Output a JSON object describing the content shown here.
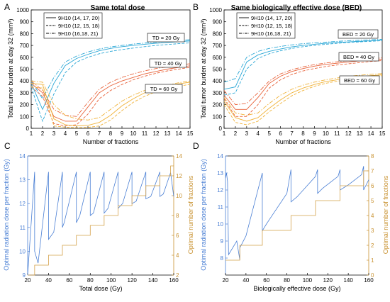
{
  "chart_data": [
    {
      "id": "A",
      "type": "line",
      "panel_label": "A",
      "title": "Same total dose",
      "xlabel": "Number of fractions",
      "ylabel": "Total tumor burden at day 32 (mm³)",
      "xlim": [
        1,
        15
      ],
      "ylim": [
        0,
        1000
      ],
      "xticks": [
        "1",
        "2",
        "3",
        "4",
        "5",
        "6",
        "7",
        "8",
        "9",
        "10",
        "11",
        "12",
        "13",
        "14",
        "15"
      ],
      "yticks": [
        "0",
        "100",
        "200",
        "300",
        "400",
        "500",
        "600",
        "700",
        "800",
        "900",
        "1000"
      ],
      "legend": {
        "position": "top-left",
        "entries": [
          {
            "label": "9H10 (14, 17, 20)",
            "style": "solid"
          },
          {
            "label": "9H10 (12, 15, 18)",
            "style": "dashed"
          },
          {
            "label": "9H10 (16,18, 21)",
            "style": "dashdot"
          }
        ]
      },
      "annotations": [
        {
          "text": "TD = 20 Gy",
          "group": 0
        },
        {
          "text": "TD = 40 Gy",
          "group": 1
        },
        {
          "text": "TD = 60 Gy",
          "group": 2
        }
      ],
      "colors": [
        "#2aa7d6",
        "#e8643c",
        "#f0b238"
      ],
      "x": [
        1,
        2,
        3,
        4,
        5,
        6,
        7,
        8,
        9,
        10,
        11,
        12,
        13,
        14,
        15
      ],
      "series": [
        {
          "group": 0,
          "style": "solid",
          "values": [
            380,
            160,
            380,
            530,
            590,
            625,
            655,
            675,
            690,
            700,
            710,
            718,
            725,
            732,
            738
          ]
        },
        {
          "group": 0,
          "style": "dashed",
          "values": [
            350,
            60,
            290,
            470,
            560,
            600,
            630,
            650,
            665,
            678,
            690,
            700,
            708,
            715,
            722
          ]
        },
        {
          "group": 0,
          "style": "dashdot",
          "values": [
            400,
            250,
            430,
            560,
            610,
            645,
            670,
            688,
            700,
            712,
            720,
            728,
            735,
            742,
            748
          ]
        },
        {
          "group": 1,
          "style": "solid",
          "values": [
            380,
            300,
            100,
            60,
            60,
            180,
            300,
            360,
            400,
            430,
            460,
            480,
            500,
            515,
            528
          ]
        },
        {
          "group": 1,
          "style": "dashed",
          "values": [
            350,
            270,
            40,
            20,
            30,
            120,
            250,
            320,
            370,
            410,
            440,
            465,
            485,
            500,
            515
          ]
        },
        {
          "group": 1,
          "style": "dashdot",
          "values": [
            400,
            320,
            160,
            110,
            100,
            220,
            330,
            390,
            430,
            460,
            485,
            505,
            520,
            535,
            545
          ]
        },
        {
          "group": 2,
          "style": "solid",
          "values": [
            380,
            370,
            80,
            30,
            20,
            25,
            50,
            110,
            190,
            250,
            300,
            330,
            355,
            375,
            390
          ]
        },
        {
          "group": 2,
          "style": "dashed",
          "values": [
            350,
            340,
            20,
            10,
            5,
            8,
            20,
            70,
            150,
            220,
            270,
            310,
            335,
            355,
            372
          ]
        },
        {
          "group": 2,
          "style": "dashdot",
          "values": [
            400,
            390,
            200,
            110,
            80,
            70,
            90,
            160,
            230,
            280,
            320,
            345,
            365,
            385,
            400
          ]
        }
      ]
    },
    {
      "id": "B",
      "type": "line",
      "panel_label": "B",
      "title": "Same biologically effective dose (BED)",
      "xlabel": "Number of fractions",
      "ylabel": "Total tumor burden at day 32 (mm³)",
      "xlim": [
        1,
        15
      ],
      "ylim": [
        0,
        1000
      ],
      "xticks": [
        "1",
        "2",
        "3",
        "4",
        "5",
        "6",
        "7",
        "8",
        "9",
        "10",
        "11",
        "12",
        "13",
        "14",
        "15"
      ],
      "yticks": [
        "0",
        "100",
        "200",
        "300",
        "400",
        "500",
        "600",
        "700",
        "800",
        "900",
        "1000"
      ],
      "legend": {
        "position": "top-left",
        "entries": [
          {
            "label": "9H10 (14, 17, 20)",
            "style": "solid"
          },
          {
            "label": "9H10 (12, 15, 18)",
            "style": "dashed"
          },
          {
            "label": "9H10 (16,18, 21)",
            "style": "dashdot"
          }
        ]
      },
      "annotations": [
        {
          "text": "BED = 20 Gy",
          "group": 0
        },
        {
          "text": "BED = 40 Gy",
          "group": 1
        },
        {
          "text": "BED = 60 Gy",
          "group": 2
        }
      ],
      "colors": [
        "#2aa7d6",
        "#e8643c",
        "#f0b238"
      ],
      "x": [
        1,
        2,
        3,
        4,
        5,
        6,
        7,
        8,
        9,
        10,
        11,
        12,
        13,
        14,
        15
      ],
      "series": [
        {
          "group": 0,
          "style": "solid",
          "values": [
            330,
            350,
            560,
            620,
            650,
            670,
            688,
            700,
            710,
            718,
            725,
            730,
            735,
            740,
            745
          ]
        },
        {
          "group": 0,
          "style": "dashed",
          "values": [
            280,
            300,
            500,
            590,
            630,
            655,
            675,
            690,
            700,
            710,
            718,
            725,
            730,
            735,
            740
          ]
        },
        {
          "group": 0,
          "style": "dashdot",
          "values": [
            390,
            420,
            600,
            650,
            675,
            692,
            705,
            715,
            722,
            728,
            734,
            740,
            744,
            748,
            752
          ]
        },
        {
          "group": 1,
          "style": "solid",
          "values": [
            280,
            160,
            160,
            260,
            380,
            440,
            480,
            505,
            525,
            540,
            550,
            560,
            570,
            578,
            585
          ]
        },
        {
          "group": 1,
          "style": "dashed",
          "values": [
            250,
            100,
            100,
            200,
            340,
            410,
            455,
            485,
            505,
            522,
            535,
            545,
            555,
            565,
            572
          ]
        },
        {
          "group": 1,
          "style": "dashdot",
          "values": [
            320,
            200,
            210,
            300,
            400,
            460,
            495,
            520,
            538,
            552,
            562,
            572,
            580,
            588,
            595
          ]
        },
        {
          "group": 2,
          "style": "solid",
          "values": [
            230,
            90,
            60,
            90,
            170,
            240,
            300,
            340,
            370,
            395,
            410,
            425,
            435,
            445,
            452
          ]
        },
        {
          "group": 2,
          "style": "dashed",
          "values": [
            200,
            50,
            30,
            60,
            140,
            210,
            275,
            320,
            355,
            380,
            398,
            412,
            425,
            435,
            445
          ]
        },
        {
          "group": 2,
          "style": "dashdot",
          "values": [
            260,
            130,
            110,
            130,
            210,
            280,
            330,
            365,
            390,
            410,
            425,
            438,
            448,
            456,
            462
          ]
        }
      ]
    },
    {
      "id": "C",
      "type": "line",
      "panel_label": "C",
      "xlabel": "Total dose (Gy)",
      "ylabel_left": "Optimal radiation dose per fraction (Gy)",
      "ylabel_right": "Optimal number of fractions",
      "xlim": [
        20,
        160
      ],
      "ylim_left": [
        9,
        14
      ],
      "ylim_right": [
        2,
        14
      ],
      "xticks": [
        "20",
        "40",
        "60",
        "80",
        "100",
        "120",
        "140",
        "160"
      ],
      "yticks_left": [
        "9",
        "10",
        "11",
        "12",
        "13",
        "14"
      ],
      "yticks_right": [
        "2",
        "4",
        "6",
        "8",
        "10",
        "12",
        "14"
      ],
      "series": [
        {
          "name": "",
          "axis": "left",
          "color": "#4a7fd4",
          "x": [
            20,
            26.7,
            26.7,
            30,
            40,
            40,
            45,
            53.3,
            53.3,
            55,
            66.7,
            66.7,
            70,
            80,
            80,
            83,
            93.3,
            93.3,
            97,
            106.7,
            106.7,
            111,
            120,
            120,
            124,
            133.3,
            133.3,
            138,
            146.7,
            146.7,
            150,
            157,
            160
          ],
          "values": [
            9.0,
            13.33,
            10.0,
            9.5,
            13.33,
            10.5,
            10.8,
            13.33,
            11.0,
            11.2,
            13.33,
            11.2,
            11.5,
            13.33,
            11.5,
            11.6,
            13.33,
            11.6,
            11.8,
            13.33,
            11.8,
            12.0,
            13.33,
            12.0,
            12.1,
            13.33,
            12.2,
            12.3,
            13.33,
            12.3,
            12.4,
            13.3,
            12.3
          ]
        },
        {
          "name": "",
          "axis": "right",
          "color": "#d4a14a",
          "x": [
            20,
            26.7,
            26.7,
            40,
            40,
            53.3,
            53.3,
            66.7,
            66.7,
            80,
            80,
            93.3,
            93.3,
            106.7,
            106.7,
            120,
            120,
            133.3,
            133.3,
            146.7,
            146.7,
            157,
            157,
            160
          ],
          "values": [
            2,
            2,
            3,
            3,
            4,
            4,
            5,
            5,
            6,
            6,
            7,
            7,
            8,
            8,
            9,
            9,
            10,
            10,
            11,
            11,
            12,
            12,
            13,
            13
          ]
        }
      ]
    },
    {
      "id": "D",
      "type": "line",
      "panel_label": "D",
      "xlabel": "Biologically effective dose (Gy)",
      "ylabel_left": "Optimal radiation dose per fraction (Gy)",
      "ylabel_right": "Optimal number of fractions",
      "xlim": [
        20,
        160
      ],
      "ylim_left": [
        7,
        14
      ],
      "ylim_right": [
        0,
        8
      ],
      "xticks": [
        "20",
        "40",
        "60",
        "80",
        "100",
        "120",
        "140",
        "160"
      ],
      "yticks_left": [
        "8",
        "9",
        "10",
        "11",
        "12",
        "13",
        "14"
      ],
      "yticks_right": [
        "0",
        "1",
        "2",
        "3",
        "4",
        "5",
        "6",
        "7",
        "8"
      ],
      "series": [
        {
          "name": "",
          "axis": "left",
          "color": "#4a7fd4",
          "x": [
            20,
            21,
            22,
            23,
            31,
            34,
            34,
            40,
            56,
            56,
            60,
            80,
            84,
            84,
            90,
            108,
            110,
            110,
            115,
            130,
            132,
            132,
            140,
            153,
            155,
            155,
            160
          ],
          "values": [
            12.7,
            13.0,
            12.5,
            8.2,
            9.0,
            7.9,
            8.6,
            9.3,
            13.0,
            9.6,
            10.0,
            11.8,
            13.2,
            11.3,
            11.6,
            12.8,
            13.2,
            11.8,
            12.1,
            12.8,
            13.2,
            12.0,
            12.3,
            12.9,
            13.4,
            12.0,
            12.6
          ]
        },
        {
          "name": "",
          "axis": "right",
          "color": "#d4a14a",
          "x": [
            20,
            34,
            34,
            56,
            56,
            84,
            84,
            108,
            108,
            132,
            132,
            155,
            155,
            160
          ],
          "values": [
            1,
            1,
            2,
            2,
            3,
            3,
            4,
            4,
            5,
            5,
            6,
            6,
            7,
            7
          ]
        }
      ]
    }
  ]
}
